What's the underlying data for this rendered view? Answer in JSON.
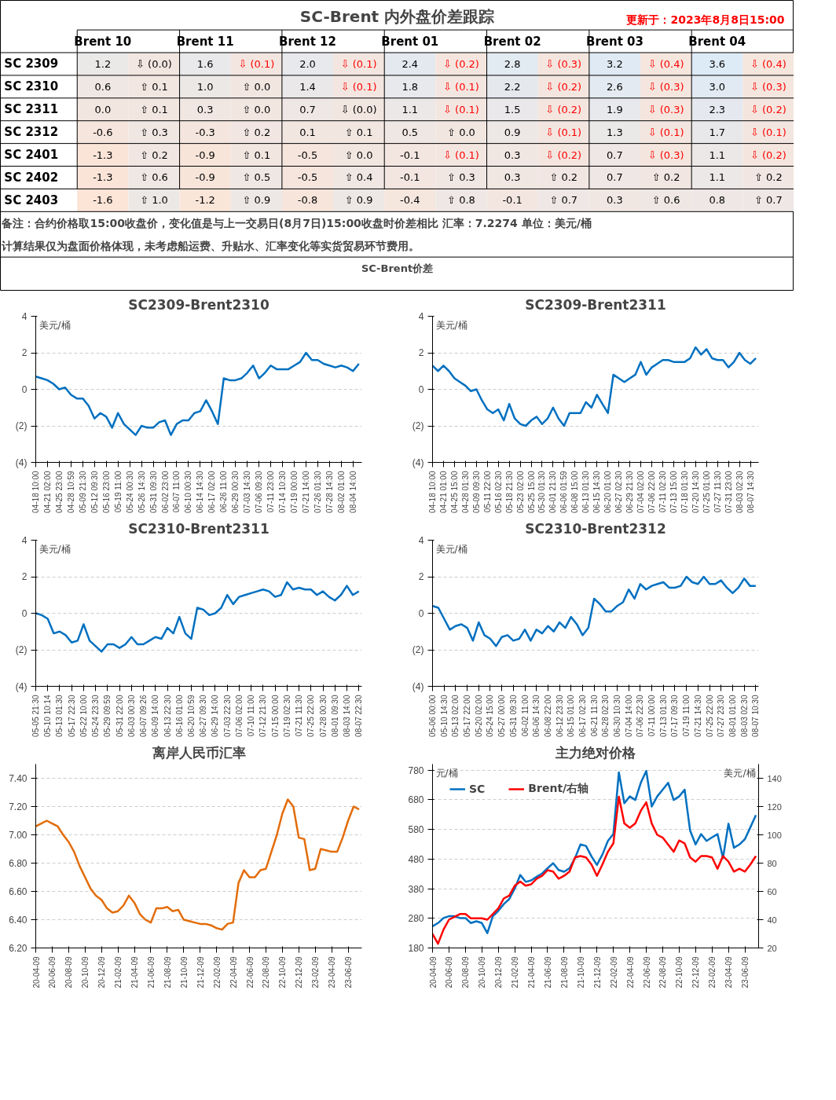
{
  "chart_data": [
    {
      "type": "heatmap",
      "grid": true,
      "title": "SC-Brent 内外盘价差跟踪",
      "subtitle": "更新于：2023年8月8日15:00",
      "categories": [
        "Brent 10",
        null,
        "Brent 11",
        null,
        "Brent 12",
        null,
        "Brent 01",
        null,
        "Brent 02",
        null,
        "Brent 03",
        null,
        "Brent 04",
        null
      ],
      "y_categories": [
        "SC 2309",
        "SC 2310",
        "SC 2311",
        "SC 2312",
        "SC 2401",
        "SC 2402",
        "SC 2403"
      ],
      "cells": [
        [
          1.2,
          0.0,
          1.6,
          -0.1,
          2.0,
          -0.1,
          2.4,
          -0.2,
          2.8,
          -0.3,
          3.2,
          -0.4,
          3.6,
          -0.4
        ],
        [
          0.6,
          0.1,
          1.0,
          0.0,
          1.4,
          -0.1,
          1.8,
          -0.1,
          2.2,
          -0.2,
          2.6,
          -0.3,
          3.0,
          -0.3
        ],
        [
          0.0,
          0.1,
          0.3,
          0.0,
          0.7,
          0.0,
          1.1,
          -0.1,
          1.5,
          -0.2,
          1.9,
          -0.3,
          2.3,
          -0.2
        ],
        [
          -0.6,
          0.3,
          -0.3,
          0.2,
          0.1,
          0.1,
          0.5,
          0.0,
          0.9,
          -0.1,
          1.3,
          -0.1,
          1.7,
          -0.1
        ],
        [
          -1.3,
          0.2,
          -0.9,
          0.1,
          -0.5,
          0.0,
          -0.1,
          -0.1,
          0.3,
          -0.2,
          0.7,
          -0.3,
          1.1,
          -0.2
        ],
        [
          -1.3,
          0.6,
          -0.9,
          0.5,
          -0.5,
          0.4,
          -0.1,
          0.3,
          0.3,
          0.2,
          0.7,
          0.2,
          1.1,
          0.2
        ],
        [
          -1.6,
          1.0,
          -1.2,
          0.9,
          -0.8,
          0.9,
          -0.4,
          0.8,
          -0.1,
          0.7,
          0.3,
          0.6,
          0.8,
          0.7
        ]
      ],
      "cell_labels": [
        [
          "1.2",
          "⇩ (0.0)",
          "1.6",
          "⇩ (0.1)",
          "2.0",
          "⇩ (0.1)",
          "2.4",
          "⇩ (0.2)",
          "2.8",
          "⇩ (0.3)",
          "3.2",
          "⇩ (0.4)",
          "3.6",
          "⇩ (0.4)"
        ],
        [
          "0.6",
          "⇧ 0.1",
          "1.0",
          "⇧ 0.0",
          "1.4",
          "⇩ (0.1)",
          "1.8",
          "⇩ (0.1)",
          "2.2",
          "⇩ (0.2)",
          "2.6",
          "⇩ (0.3)",
          "3.0",
          "⇩ (0.3)"
        ],
        [
          "0.0",
          "⇧ 0.1",
          "0.3",
          "⇧ 0.0",
          "0.7",
          "⇩ (0.0)",
          "1.1",
          "⇩ (0.1)",
          "1.5",
          "⇩ (0.2)",
          "1.9",
          "⇩ (0.3)",
          "2.3",
          "⇩ (0.2)"
        ],
        [
          "-0.6",
          "⇧ 0.3",
          "-0.3",
          "⇧ 0.2",
          "0.1",
          "⇧ 0.1",
          "0.5",
          "⇧ 0.0",
          "0.9",
          "⇩ (0.1)",
          "1.3",
          "⇩ (0.1)",
          "1.7",
          "⇩ (0.1)"
        ],
        [
          "-1.3",
          "⇧ 0.2",
          "-0.9",
          "⇧ 0.1",
          "-0.5",
          "⇧ 0.0",
          "-0.1",
          "⇩ (0.1)",
          "0.3",
          "⇩ (0.2)",
          "0.7",
          "⇩ (0.3)",
          "1.1",
          "⇩ (0.2)"
        ],
        [
          "-1.3",
          "⇧ 0.6",
          "-0.9",
          "⇧ 0.5",
          "-0.5",
          "⇧ 0.4",
          "-0.1",
          "⇧ 0.3",
          "0.3",
          "⇧ 0.2",
          "0.7",
          "⇧ 0.2",
          "1.1",
          "⇧ 0.2"
        ],
        [
          "-1.6",
          "⇧ 1.0",
          "-1.2",
          "⇧ 0.9",
          "-0.8",
          "⇧ 0.9",
          "-0.4",
          "⇧ 0.8",
          "-0.1",
          "⇧ 0.7",
          "0.3",
          "⇧ 0.6",
          "0.8",
          "⇧ 0.7"
        ]
      ],
      "annotations": [
        "备注：合约价格取15:00收盘价，变化值是与上一交易日(8月7日)15:00收盘时价差相比  汇率：7.2274  单位：美元/桶",
        "计算结果仅为盘面价格体现，未考虑船运费、升贴水、汇率变化等实货贸易环节费用。",
        "SC-Brent价差"
      ]
    },
    {
      "type": "line",
      "title": "SC2309-Brent2310",
      "ylabel": "美元/桶",
      "grid": "y",
      "ylim": [
        -4,
        4
      ],
      "yticks": [
        {
          "value": -4,
          "label": "(4)"
        },
        {
          "value": -2,
          "label": "(2)"
        },
        0,
        2,
        4
      ],
      "categories": [
        "04-18 10:00",
        null,
        "04-21 02:00",
        null,
        "04-25 23:00",
        null,
        "04-28 10:59",
        null,
        "05-09 21:30",
        null,
        "05-12 09:30",
        null,
        "05-16 23:00",
        null,
        "05-19 11:00",
        null,
        "05-24 00:30",
        null,
        "05-26 14:30",
        null,
        "05-31 09:30",
        null,
        "06-02 23:00",
        null,
        "06-07 11:00",
        null,
        "06-10 00:30",
        null,
        "06-14 14:30",
        null,
        "06-17 02:00",
        null,
        "06-26 11:00",
        null,
        "06-29 00:30",
        null,
        "07-03 14:30",
        null,
        "07-06 09:30",
        null,
        "07-11 23:00",
        null,
        "07-14 10:30",
        null,
        "07-19 00:00",
        null,
        "07-21 14:00",
        null,
        "07-26 01:30",
        null,
        "07-28 14:30",
        null,
        "08-02 01:00",
        null,
        "08-04 14:00",
        null
      ],
      "series": [
        {
          "color": "#0070c0",
          "values": [
            0.7,
            0.6,
            0.5,
            0.3,
            0.0,
            0.1,
            -0.3,
            -0.5,
            -0.5,
            -0.9,
            -1.6,
            -1.3,
            -1.5,
            -2.1,
            -1.3,
            -1.9,
            -2.2,
            -2.5,
            -2.0,
            -2.1,
            -2.1,
            -1.8,
            -1.7,
            -2.5,
            -1.9,
            -1.7,
            -1.7,
            -1.3,
            -1.2,
            -0.6,
            -1.2,
            -1.9,
            0.6,
            0.5,
            0.5,
            0.6,
            0.9,
            1.3,
            0.6,
            0.9,
            1.3,
            1.1,
            1.1,
            1.1,
            1.3,
            1.5,
            2.0,
            1.6,
            1.6,
            1.4,
            1.3,
            1.2,
            1.3,
            1.2,
            1.0,
            1.4
          ]
        }
      ]
    },
    {
      "type": "line",
      "title": "SC2309-Brent2311",
      "ylabel": "美元/桶",
      "grid": "y",
      "ylim": [
        -4,
        4
      ],
      "yticks": [
        {
          "value": -4,
          "label": "(4)"
        },
        {
          "value": -2,
          "label": "(2)"
        },
        0,
        2,
        4
      ],
      "categories": [
        "04-18 10:00",
        null,
        "04-21 01:00",
        null,
        "04-25 15:00",
        null,
        "04-28 01:30",
        null,
        "05-09 09:30",
        null,
        "05-11 22:00",
        null,
        "05-16 02:30",
        null,
        "05-18 21:30",
        null,
        "05-23 02:00",
        null,
        "05-25 15:00",
        null,
        "05-30 01:30",
        null,
        "06-01 21:30",
        null,
        "06-06 01:59",
        null,
        "06-08 15:00",
        null,
        "06-13 01:30",
        null,
        "06-15 14:30",
        null,
        "06-20 01:00",
        null,
        "06-27 02:30",
        null,
        "06-29 21:30",
        null,
        "07-04 02:00",
        null,
        "07-06 22:00",
        null,
        "07-11 02:30",
        null,
        "07-13 15:00",
        null,
        "07-18 01:30",
        null,
        "07-20 14:30",
        null,
        "07-25 01:00",
        null,
        "07-27 11:30",
        null,
        "07-31 23:00",
        null,
        "08-03 02:30",
        null,
        "08-07 14:30",
        null
      ],
      "series": [
        {
          "color": "#0070c0",
          "values": [
            1.3,
            1.0,
            1.3,
            1.0,
            0.6,
            0.4,
            0.2,
            -0.1,
            0.0,
            -0.6,
            -1.1,
            -1.3,
            -1.1,
            -1.7,
            -0.8,
            -1.6,
            -1.9,
            -2.0,
            -1.7,
            -1.5,
            -1.9,
            -1.6,
            -1.0,
            -1.6,
            -2.0,
            -1.3,
            -1.3,
            -1.3,
            -0.7,
            -1.0,
            -0.3,
            -0.8,
            -1.3,
            0.8,
            0.6,
            0.4,
            0.6,
            0.8,
            1.5,
            0.8,
            1.2,
            1.4,
            1.6,
            1.6,
            1.5,
            1.5,
            1.5,
            1.7,
            2.3,
            1.9,
            2.2,
            1.7,
            1.6,
            1.6,
            1.2,
            1.5,
            2.0,
            1.6,
            1.4,
            1.7
          ]
        }
      ]
    },
    {
      "type": "line",
      "title": "SC2310-Brent2311",
      "ylabel": "美元/桶",
      "grid": "y",
      "ylim": [
        -4,
        4
      ],
      "yticks": [
        {
          "value": -4,
          "label": "(4)"
        },
        {
          "value": -2,
          "label": "(2)"
        },
        0,
        2,
        4
      ],
      "categories": [
        "05-05 21:30",
        null,
        "05-10 10:14",
        null,
        "05-13 01:30",
        null,
        "05-17 22:30",
        null,
        "05-22 10:00",
        null,
        "05-24 23:30",
        null,
        "05-29 09:59",
        null,
        "05-31 22:00",
        null,
        "06-03 00:30",
        null,
        "06-07 09:26",
        null,
        "06-09 14:00",
        null,
        "06-13 22:30",
        null,
        "06-16 01:00",
        null,
        "06-20 10:59",
        null,
        "06-27 09:30",
        null,
        "06-29 14:00",
        null,
        "07-03 22:30",
        null,
        "07-06 02:00",
        null,
        "07-10 11:00",
        null,
        "07-12 21:30",
        null,
        "07-15 00:00",
        null,
        "07-19 02:30",
        null,
        "07-21 11:30",
        null,
        "07-25 22:00",
        null,
        "07-28 00:30",
        null,
        "08-01 09:30",
        null,
        "08-03 14:00",
        null,
        "08-07 22:30"
      ],
      "series": [
        {
          "color": "#0070c0",
          "values": [
            0.0,
            -0.1,
            -0.3,
            -1.1,
            -1.0,
            -1.2,
            -1.6,
            -1.5,
            -0.6,
            -1.5,
            -1.8,
            -2.1,
            -1.7,
            -1.7,
            -1.9,
            -1.7,
            -1.3,
            -1.7,
            -1.7,
            -1.5,
            -1.3,
            -1.4,
            -0.8,
            -1.1,
            -0.2,
            -1.1,
            -1.4,
            0.3,
            0.2,
            -0.1,
            0.0,
            0.3,
            1.0,
            0.5,
            0.9,
            1.0,
            1.1,
            1.2,
            1.3,
            1.2,
            0.9,
            1.0,
            1.7,
            1.3,
            1.4,
            1.3,
            1.3,
            1.0,
            1.2,
            0.9,
            0.7,
            1.0,
            1.5,
            1.0,
            1.2
          ]
        }
      ]
    },
    {
      "type": "line",
      "title": "SC2310-Brent2312",
      "ylabel": "美元/桶",
      "grid": "y",
      "ylim": [
        -4,
        4
      ],
      "yticks": [
        {
          "value": -4,
          "label": "(4)"
        },
        {
          "value": -2,
          "label": "(2)"
        },
        0,
        2,
        4
      ],
      "categories": [
        "05-06 00:00",
        null,
        "05-10 14:30",
        null,
        "05-13 02:00",
        null,
        "05-17 22:00",
        null,
        "05-20 02:00",
        null,
        "05-24 15:00",
        null,
        "05-27 00:00",
        null,
        "05-31 09:30",
        null,
        "06-02 11:00",
        null,
        "06-06 14:30",
        null,
        "06-08 22:00",
        null,
        "06-12 23:30",
        null,
        "06-15 01:00",
        null,
        "06-17 02:30",
        null,
        "06-21 11:30",
        null,
        "06-28 02:30",
        null,
        "06-30 10:30",
        null,
        "07-04 14:00",
        null,
        "07-06 22:30",
        null,
        "07-11 00:00",
        null,
        "07-13 01:30",
        null,
        "07-17 09:30",
        null,
        "07-19 11:00",
        null,
        "07-21 14:30",
        null,
        "07-25 22:00",
        null,
        "07-27 23:30",
        null,
        "08-01 01:00",
        null,
        "08-03 02:30",
        null,
        "08-07 10:30"
      ],
      "series": [
        {
          "color": "#0070c0",
          "values": [
            0.4,
            0.3,
            -0.3,
            -0.9,
            -0.7,
            -0.6,
            -0.8,
            -1.5,
            -0.5,
            -1.2,
            -1.4,
            -1.8,
            -1.3,
            -1.2,
            -1.5,
            -1.4,
            -0.9,
            -1.5,
            -0.9,
            -1.1,
            -0.7,
            -1.0,
            -0.5,
            -0.8,
            -0.2,
            -0.6,
            -1.2,
            -0.8,
            0.8,
            0.5,
            0.1,
            0.1,
            0.4,
            0.6,
            1.3,
            0.8,
            1.6,
            1.3,
            1.5,
            1.6,
            1.7,
            1.4,
            1.4,
            1.5,
            2.0,
            1.7,
            1.6,
            2.0,
            1.6,
            1.6,
            1.8,
            1.4,
            1.1,
            1.4,
            1.9,
            1.5,
            1.5
          ]
        }
      ]
    },
    {
      "type": "line",
      "title": "离岸人民币汇率",
      "grid": "y",
      "ylim": [
        6.2,
        7.5
      ],
      "yticks": [
        {
          "value": 6.2,
          "label": "6.20"
        },
        {
          "value": 6.4,
          "label": "6.40"
        },
        {
          "value": 6.6,
          "label": "6.60"
        },
        {
          "value": 6.8,
          "label": "6.80"
        },
        {
          "value": 7.0,
          "label": "7.00"
        },
        {
          "value": 7.2,
          "label": "7.20"
        },
        {
          "value": 7.4,
          "label": "7.40"
        }
      ],
      "categories": [
        "20-04-09",
        null,
        null,
        "20-06-09",
        null,
        null,
        "20-08-09",
        null,
        null,
        "20-10-09",
        null,
        null,
        "20-12-09",
        null,
        null,
        "21-02-09",
        null,
        null,
        "21-04-09",
        null,
        null,
        "21-06-09",
        null,
        null,
        "21-08-09",
        null,
        null,
        "21-10-09",
        null,
        null,
        "21-12-09",
        null,
        null,
        "22-02-09",
        null,
        null,
        "22-04-09",
        null,
        null,
        "22-06-09",
        null,
        null,
        "22-08-09",
        null,
        null,
        "22-10-09",
        null,
        null,
        "22-12-09",
        null,
        null,
        "23-02-09",
        null,
        null,
        "23-04-09",
        null,
        null,
        "23-06-09",
        null,
        null
      ],
      "series": [
        {
          "color": "#e36c09",
          "values": [
            7.06,
            7.08,
            7.1,
            7.08,
            7.06,
            7.0,
            6.95,
            6.88,
            6.78,
            6.7,
            6.62,
            6.57,
            6.54,
            6.48,
            6.45,
            6.46,
            6.5,
            6.57,
            6.52,
            6.44,
            6.4,
            6.38,
            6.48,
            6.48,
            6.49,
            6.46,
            6.47,
            6.4,
            6.39,
            6.38,
            6.37,
            6.37,
            6.36,
            6.34,
            6.33,
            6.37,
            6.38,
            6.66,
            6.75,
            6.7,
            6.7,
            6.75,
            6.76,
            6.88,
            7.0,
            7.15,
            7.25,
            7.2,
            6.98,
            6.97,
            6.75,
            6.76,
            6.9,
            6.89,
            6.88,
            6.88,
            6.98,
            7.1,
            7.2,
            7.18
          ]
        }
      ]
    },
    {
      "type": "line",
      "title": "主力绝对价格",
      "ylabel": "元/桶",
      "y2label": "美元/桶",
      "grid": "y",
      "legend": "top left",
      "ylim": [
        180,
        800
      ],
      "yticks": [
        180,
        280,
        380,
        480,
        580,
        680,
        780
      ],
      "y2lim": [
        20,
        150
      ],
      "y2ticks": [
        20,
        40,
        60,
        80,
        100,
        120,
        140
      ],
      "categories": [
        "20-04-09",
        null,
        null,
        "20-06-09",
        null,
        null,
        "20-08-09",
        null,
        null,
        "20-10-09",
        null,
        null,
        "20-12-09",
        null,
        null,
        "21-02-09",
        null,
        null,
        "21-04-09",
        null,
        null,
        "21-06-09",
        null,
        null,
        "21-08-09",
        null,
        null,
        "21-10-09",
        null,
        null,
        "21-12-09",
        null,
        null,
        "22-02-09",
        null,
        null,
        "22-04-09",
        null,
        null,
        "22-06-09",
        null,
        null,
        "22-08-09",
        null,
        null,
        "22-10-09",
        null,
        null,
        "22-12-09",
        null,
        null,
        "23-02-09",
        null,
        null,
        "23-04-09",
        null,
        null,
        "23-06-09",
        null,
        null
      ],
      "series": [
        {
          "name": "SC",
          "color": "#0070c0",
          "values": [
            253,
            264,
            281,
            287,
            287,
            281,
            281,
            264,
            270,
            264,
            230,
            287,
            305,
            328,
            345,
            380,
            426,
            403,
            408,
            420,
            431,
            449,
            466,
            443,
            437,
            449,
            483,
            529,
            524,
            489,
            460,
            495,
            541,
            564,
            772,
            668,
            691,
            679,
            737,
            777,
            657,
            691,
            714,
            737,
            679,
            691,
            714,
            576,
            529,
            564,
            541,
            553,
            564,
            483,
            599,
            518,
            529,
            547,
            587,
            628
          ]
        },
        {
          "name": "Brent/右轴",
          "color": "#ff0000",
          "axis": "y2",
          "values": [
            30,
            23,
            33,
            40,
            42,
            44,
            44,
            41,
            41,
            41,
            40,
            44,
            48,
            55,
            57,
            64,
            67,
            64,
            65,
            69,
            71,
            75,
            74,
            69,
            71,
            74,
            84,
            85,
            84,
            79,
            71,
            79,
            88,
            94,
            127,
            108,
            105,
            108,
            117,
            123,
            108,
            100,
            98,
            93,
            88,
            96,
            94,
            84,
            81,
            85,
            85,
            84,
            76,
            85,
            81,
            74,
            76,
            74,
            79,
            85
          ]
        }
      ]
    }
  ]
}
